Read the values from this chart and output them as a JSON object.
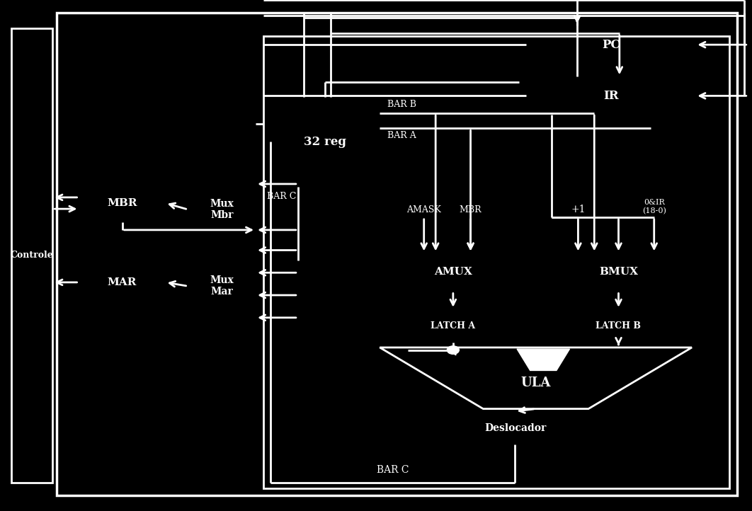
{
  "bg_color": "#000000",
  "fg_color": "#ffffff",
  "figsize": [
    10.62,
    7.22
  ],
  "dpi": 100,
  "boxes": {
    "PC": [
      0.7,
      0.875,
      0.225,
      0.075
    ],
    "IR": [
      0.7,
      0.775,
      0.225,
      0.075
    ],
    "reg32": [
      0.36,
      0.635,
      0.145,
      0.175
    ],
    "AMUX": [
      0.525,
      0.43,
      0.155,
      0.075
    ],
    "BMUX": [
      0.715,
      0.43,
      0.215,
      0.075
    ],
    "LATCHA": [
      0.525,
      0.33,
      0.155,
      0.065
    ],
    "LATCHB": [
      0.715,
      0.33,
      0.215,
      0.065
    ],
    "Deslocador": [
      0.585,
      0.13,
      0.2,
      0.065
    ],
    "MAR": [
      0.105,
      0.41,
      0.115,
      0.075
    ],
    "MuxMar": [
      0.25,
      0.33,
      0.09,
      0.22
    ],
    "MBR": [
      0.105,
      0.565,
      0.115,
      0.075
    ],
    "MuxMbr": [
      0.25,
      0.49,
      0.09,
      0.2
    ],
    "Controle": [
      0.015,
      0.055,
      0.055,
      0.89
    ]
  },
  "labels": {
    "PC": "PC",
    "IR": "IR",
    "reg32": "32 reg",
    "AMUX": "AMUX",
    "BMUX": "BMUX",
    "LATCHA": "LATCH A",
    "LATCHB": "LATCH B",
    "Deslocador": "Deslocador",
    "MAR": "MAR",
    "MuxMar": "Mux\nMar",
    "MBR": "MBR",
    "MuxMbr": "Mux\nMbr",
    "Controle": "Controle"
  },
  "fontsizes": {
    "PC": 12,
    "IR": 12,
    "reg32": 12,
    "AMUX": 11,
    "BMUX": 11,
    "LATCHA": 9,
    "LATCHB": 9,
    "Deslocador": 10,
    "MAR": 11,
    "MuxMar": 10,
    "MBR": 11,
    "MuxMbr": 10,
    "Controle": 9
  }
}
